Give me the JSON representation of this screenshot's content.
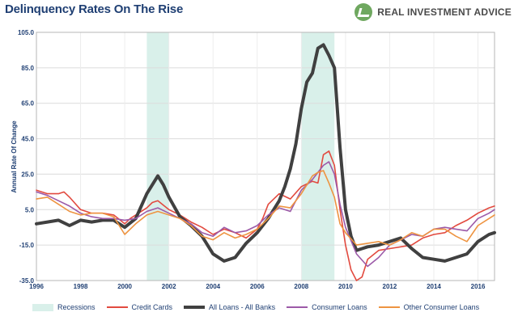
{
  "title": "Delinquency Rates On The Rise",
  "brand": {
    "text": "REAL INVESTMENT ADVICE",
    "icon": "checkmark-logo-icon",
    "color": "#6fa860"
  },
  "chart_data": {
    "type": "line",
    "title": "Delinquency Rates On The Rise",
    "ylabel": "Annual Rate Of Change",
    "xlabel": "",
    "xlim": [
      1996,
      2016.75
    ],
    "ylim": [
      -35,
      105
    ],
    "yticks": [
      "105.0",
      "85.0",
      "65.0",
      "45.0",
      "25.0",
      "5.0",
      "-15.0",
      "-35.0"
    ],
    "ytick_values": [
      105,
      85,
      65,
      45,
      25,
      5,
      -15,
      -35
    ],
    "xticks": [
      "1996",
      "1998",
      "2000",
      "2002",
      "2004",
      "2006",
      "2008",
      "2010",
      "2012",
      "2014",
      "2016"
    ],
    "xtick_values": [
      1996,
      1998,
      2000,
      2002,
      2004,
      2006,
      2008,
      2010,
      2012,
      2014,
      2016
    ],
    "grid": true,
    "legend_position": "bottom",
    "recessions": {
      "name": "Recessions",
      "color": "#d9f0ea",
      "periods": [
        [
          2001.0,
          2002.0
        ],
        [
          2008.0,
          2009.5
        ]
      ]
    },
    "series": [
      {
        "name": "Credit Cards",
        "color": "#e24a3f",
        "width": 1.6,
        "x": [
          1996,
          1996.5,
          1997,
          1997.25,
          1997.5,
          1998,
          1998.5,
          1999,
          1999.5,
          2000,
          2000.25,
          2000.5,
          2001,
          2001.25,
          2001.5,
          2002,
          2002.5,
          2003,
          2003.5,
          2004,
          2004.5,
          2005,
          2005.5,
          2006,
          2006.25,
          2006.5,
          2007,
          2007.5,
          2008,
          2008.5,
          2008.75,
          2009,
          2009.25,
          2009.5,
          2009.75,
          2010,
          2010.25,
          2010.5,
          2010.75,
          2011,
          2011.5,
          2012,
          2012.5,
          2013,
          2013.5,
          2014,
          2014.5,
          2015,
          2015.5,
          2016,
          2016.5,
          2016.75
        ],
        "y": [
          16,
          14,
          14,
          15,
          12,
          5,
          3,
          3,
          2,
          -3,
          0,
          2,
          6,
          9,
          10,
          5,
          2,
          -2,
          -5,
          -9,
          -6,
          -8,
          -11,
          -6,
          0,
          8,
          14,
          11,
          18,
          21,
          20,
          36,
          38,
          30,
          5,
          -15,
          -29,
          -35,
          -33,
          -23,
          -18,
          -17,
          -16,
          -15,
          -11,
          -9,
          -8,
          -4,
          -1,
          3,
          6,
          7
        ]
      },
      {
        "name": "All Loans - All Banks",
        "color": "#404040",
        "width": 4,
        "x": [
          1996,
          1996.5,
          1997,
          1997.5,
          1998,
          1998.5,
          1999,
          1999.5,
          2000,
          2000.5,
          2001,
          2001.25,
          2001.5,
          2001.75,
          2002,
          2002.5,
          2003,
          2003.5,
          2004,
          2004.5,
          2005,
          2005.5,
          2006,
          2006.25,
          2006.5,
          2007,
          2007.25,
          2007.5,
          2007.75,
          2008,
          2008.25,
          2008.5,
          2008.75,
          2009,
          2009.25,
          2009.5,
          2009.75,
          2010,
          2010.25,
          2010.5,
          2010.75,
          2011,
          2011.5,
          2012,
          2012.5,
          2013,
          2013.5,
          2014,
          2014.5,
          2015,
          2015.5,
          2016,
          2016.5,
          2016.75
        ],
        "y": [
          -3,
          -2,
          -1,
          -4,
          -1,
          -2,
          -1,
          -1,
          -5,
          0,
          14,
          19,
          24,
          19,
          12,
          1,
          -4,
          -10,
          -20,
          -24,
          -22,
          -14,
          -8,
          -4,
          0,
          10,
          18,
          28,
          42,
          62,
          77,
          82,
          96,
          98,
          92,
          85,
          40,
          5,
          -10,
          -18,
          -17,
          -16,
          -15,
          -13,
          -11,
          -17,
          -22,
          -23,
          -24,
          -22,
          -20,
          -13,
          -9,
          -8
        ]
      },
      {
        "name": "Consumer Loans",
        "color": "#9c5aa8",
        "width": 1.6,
        "x": [
          1996,
          1996.5,
          1997,
          1997.5,
          1998,
          1998.5,
          1999,
          1999.5,
          2000,
          2000.5,
          2001,
          2001.5,
          2002,
          2002.5,
          2003,
          2003.5,
          2004,
          2004.5,
          2005,
          2005.5,
          2006,
          2006.5,
          2007,
          2007.5,
          2008,
          2008.5,
          2009,
          2009.25,
          2009.5,
          2009.75,
          2010,
          2010.5,
          2011,
          2011.5,
          2012,
          2012.5,
          2013,
          2013.5,
          2014,
          2014.5,
          2015,
          2015.5,
          2016,
          2016.5,
          2016.75
        ],
        "y": [
          15,
          13,
          10,
          7,
          3,
          1,
          0,
          0,
          -1,
          0,
          4,
          6,
          3,
          0,
          -3,
          -8,
          -10,
          -5,
          -8,
          -7,
          -4,
          2,
          6,
          4,
          16,
          22,
          30,
          32,
          25,
          8,
          -5,
          -20,
          -27,
          -22,
          -15,
          -12,
          -9,
          -10,
          -6,
          -5,
          -6,
          -7,
          0,
          3,
          5
        ]
      },
      {
        "name": "Other Consumer Loans",
        "color": "#ee9441",
        "width": 1.6,
        "x": [
          1996,
          1996.5,
          1997,
          1997.5,
          1998,
          1998.5,
          1999,
          1999.5,
          2000,
          2000.5,
          2001,
          2001.5,
          2002,
          2002.5,
          2003,
          2003.5,
          2004,
          2004.5,
          2005,
          2005.5,
          2006,
          2006.5,
          2007,
          2007.5,
          2008,
          2008.5,
          2008.75,
          2009,
          2009.25,
          2009.5,
          2009.75,
          2010,
          2010.5,
          2011,
          2011.5,
          2012,
          2012.5,
          2013,
          2013.5,
          2014,
          2014.5,
          2015,
          2015.5,
          2016,
          2016.5,
          2016.75
        ],
        "y": [
          11,
          12,
          8,
          4,
          2,
          3,
          3,
          1,
          -9,
          -3,
          2,
          4,
          2,
          0,
          -4,
          -10,
          -12,
          -8,
          -11,
          -9,
          -6,
          0,
          7,
          6,
          14,
          24,
          26,
          27,
          20,
          12,
          -3,
          -8,
          -15,
          -14,
          -13,
          -15,
          -12,
          -8,
          -10,
          -6,
          -6,
          -10,
          -13,
          -4,
          0,
          2
        ]
      }
    ]
  }
}
